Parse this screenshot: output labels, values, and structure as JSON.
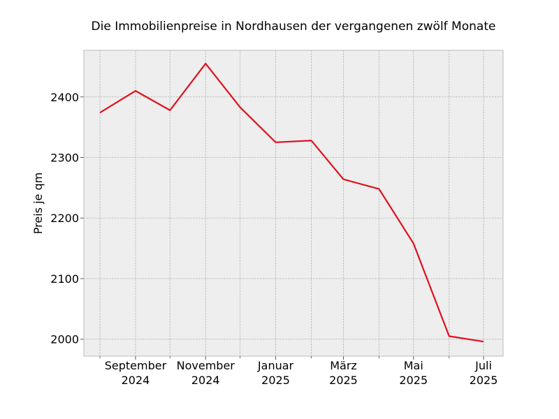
{
  "chart_data": {
    "type": "line",
    "title": "Die Immobilienpreise in Nordhausen der vergangenen zwölf Monate",
    "xlabel": "",
    "ylabel": "Preis je qm",
    "x": [
      "2024-08",
      "2024-09",
      "2024-10",
      "2024-11",
      "2024-12",
      "2025-01",
      "2025-02",
      "2025-03",
      "2025-04",
      "2025-05",
      "2025-06",
      "2025-07"
    ],
    "series": [
      {
        "values": [
          2374,
          2410,
          2378,
          2455,
          2383,
          2325,
          2328,
          2264,
          2248,
          2158,
          2005,
          1996
        ],
        "color": "#e0101e"
      }
    ],
    "ylim": [
      1972,
      2477
    ],
    "xlim": [
      "2024-07-18",
      "2025-07-18"
    ],
    "x_ticks": [
      {
        "x": "2024-09",
        "line1": "September",
        "line2": "2024"
      },
      {
        "x": "2024-11",
        "line1": "November",
        "line2": "2024"
      },
      {
        "x": "2025-01",
        "line1": "Januar",
        "line2": "2025"
      },
      {
        "x": "2025-03",
        "line1": "März",
        "line2": "2025"
      },
      {
        "x": "2025-05",
        "line1": "Mai",
        "line2": "2025"
      },
      {
        "x": "2025-07",
        "line1": "Juli",
        "line2": "2025"
      }
    ],
    "x_minor_ticks": [
      "2024-08",
      "2024-10",
      "2024-12",
      "2025-02",
      "2025-04",
      "2025-06"
    ],
    "y_ticks": [
      2000,
      2100,
      2200,
      2300,
      2400
    ],
    "grid": true,
    "legend": "none",
    "background_color": "#eeeeee"
  }
}
